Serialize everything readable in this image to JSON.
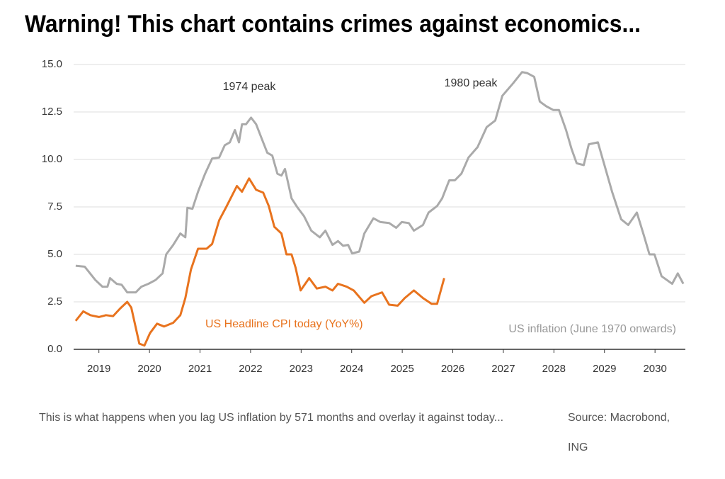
{
  "chart_data": {
    "type": "line",
    "title": "Warning! This chart contains crimes against economics...",
    "annotations": [
      "1974 peak",
      "1980 peak"
    ],
    "caption": "This is what happens when you lag US inflation by 571 months and overlay it against today...",
    "source": "Source: Macrobond, ING",
    "xlim": [
      2018.5,
      2030.6
    ],
    "xticks": [
      2019,
      2020,
      2021,
      2022,
      2023,
      2024,
      2025,
      2026,
      2027,
      2028,
      2029,
      2030
    ],
    "ylim": [
      0,
      15
    ],
    "yticks": [
      {
        "value": 0,
        "label": "0.0"
      },
      2.5,
      {
        "value": 5,
        "label": "5.0"
      },
      7.5,
      {
        "value": 10,
        "label": "10.0"
      },
      12.5,
      {
        "value": 15,
        "label": "15.0"
      }
    ],
    "grid": true,
    "series": [
      {
        "name": "US inflation (June 1970 onwards)",
        "color": "#aaaaaa",
        "x": [
          2018.54,
          2018.72,
          2018.93,
          2019.07,
          2019.17,
          2019.22,
          2019.35,
          2019.45,
          2019.56,
          2019.73,
          2019.84,
          2019.98,
          2020.12,
          2020.26,
          2020.33,
          2020.47,
          2020.61,
          2020.71,
          2020.75,
          2020.85,
          2020.96,
          2021.1,
          2021.24,
          2021.38,
          2021.49,
          2021.59,
          2021.69,
          2021.77,
          2021.83,
          2021.91,
          2022.01,
          2022.11,
          2022.22,
          2022.33,
          2022.43,
          2022.53,
          2022.61,
          2022.68,
          2022.81,
          2022.92,
          2023.06,
          2023.2,
          2023.37,
          2023.48,
          2023.62,
          2023.73,
          2023.83,
          2023.93,
          2024.01,
          2024.15,
          2024.25,
          2024.43,
          2024.57,
          2024.74,
          2024.88,
          2024.99,
          2025.13,
          2025.23,
          2025.41,
          2025.52,
          2025.69,
          2025.79,
          2025.93,
          2026.04,
          2026.17,
          2026.31,
          2026.49,
          2026.67,
          2026.84,
          2026.98,
          2027.19,
          2027.37,
          2027.47,
          2027.61,
          2027.72,
          2027.85,
          2027.99,
          2028.1,
          2028.24,
          2028.35,
          2028.45,
          2028.59,
          2028.69,
          2028.87,
          2029.01,
          2029.15,
          2029.33,
          2029.47,
          2029.64,
          2029.78,
          2029.89,
          2029.99,
          2030.13,
          2030.34,
          2030.45,
          2030.56
        ],
        "values": [
          4.4,
          4.35,
          3.65,
          3.3,
          3.3,
          3.75,
          3.45,
          3.4,
          3.0,
          3.0,
          3.3,
          3.45,
          3.65,
          4.0,
          5.0,
          5.5,
          6.1,
          5.9,
          7.45,
          7.4,
          8.3,
          9.25,
          10.05,
          10.1,
          10.75,
          10.9,
          11.55,
          10.9,
          11.85,
          11.85,
          12.2,
          11.85,
          11.1,
          10.35,
          10.2,
          9.25,
          9.15,
          9.5,
          7.95,
          7.5,
          7.0,
          6.25,
          5.9,
          6.25,
          5.5,
          5.7,
          5.45,
          5.5,
          5.05,
          5.15,
          6.1,
          6.9,
          6.7,
          6.65,
          6.4,
          6.7,
          6.65,
          6.25,
          6.55,
          7.2,
          7.55,
          7.95,
          8.9,
          8.9,
          9.25,
          10.1,
          10.65,
          11.7,
          12.05,
          13.35,
          14.0,
          14.6,
          14.55,
          14.35,
          13.05,
          12.8,
          12.6,
          12.6,
          11.55,
          10.55,
          9.8,
          9.7,
          10.8,
          10.9,
          9.6,
          8.3,
          6.85,
          6.55,
          7.2,
          6.0,
          5.0,
          5.0,
          3.85,
          3.45,
          4.0,
          3.45
        ]
      },
      {
        "name": "US Headline CPI today (YoY%)",
        "color": "#e8731e",
        "x": [
          2018.54,
          2018.69,
          2018.83,
          2019.0,
          2019.14,
          2019.28,
          2019.42,
          2019.56,
          2019.64,
          2019.8,
          2019.9,
          2020.01,
          2020.15,
          2020.29,
          2020.47,
          2020.61,
          2020.71,
          2020.82,
          2020.96,
          2021.13,
          2021.24,
          2021.38,
          2021.52,
          2021.73,
          2021.83,
          2021.97,
          2022.11,
          2022.25,
          2022.36,
          2022.47,
          2022.61,
          2022.71,
          2022.81,
          2022.89,
          2022.99,
          2023.16,
          2023.31,
          2023.48,
          2023.62,
          2023.73,
          2023.9,
          2024.04,
          2024.25,
          2024.39,
          2024.6,
          2024.74,
          2024.91,
          2025.05,
          2025.23,
          2025.41,
          2025.58,
          2025.69,
          2025.83
        ],
        "values": [
          1.5,
          2.0,
          1.8,
          1.7,
          1.8,
          1.75,
          2.15,
          2.5,
          2.2,
          0.3,
          0.2,
          0.85,
          1.35,
          1.2,
          1.4,
          1.8,
          2.7,
          4.2,
          5.3,
          5.3,
          5.55,
          6.8,
          7.5,
          8.6,
          8.3,
          9.0,
          8.4,
          8.25,
          7.55,
          6.45,
          6.1,
          5.0,
          5.0,
          4.3,
          3.1,
          3.75,
          3.2,
          3.3,
          3.1,
          3.45,
          3.3,
          3.1,
          2.45,
          2.8,
          3.0,
          2.35,
          2.3,
          2.7,
          3.1,
          2.7,
          2.4,
          2.4,
          3.75
        ]
      }
    ]
  }
}
